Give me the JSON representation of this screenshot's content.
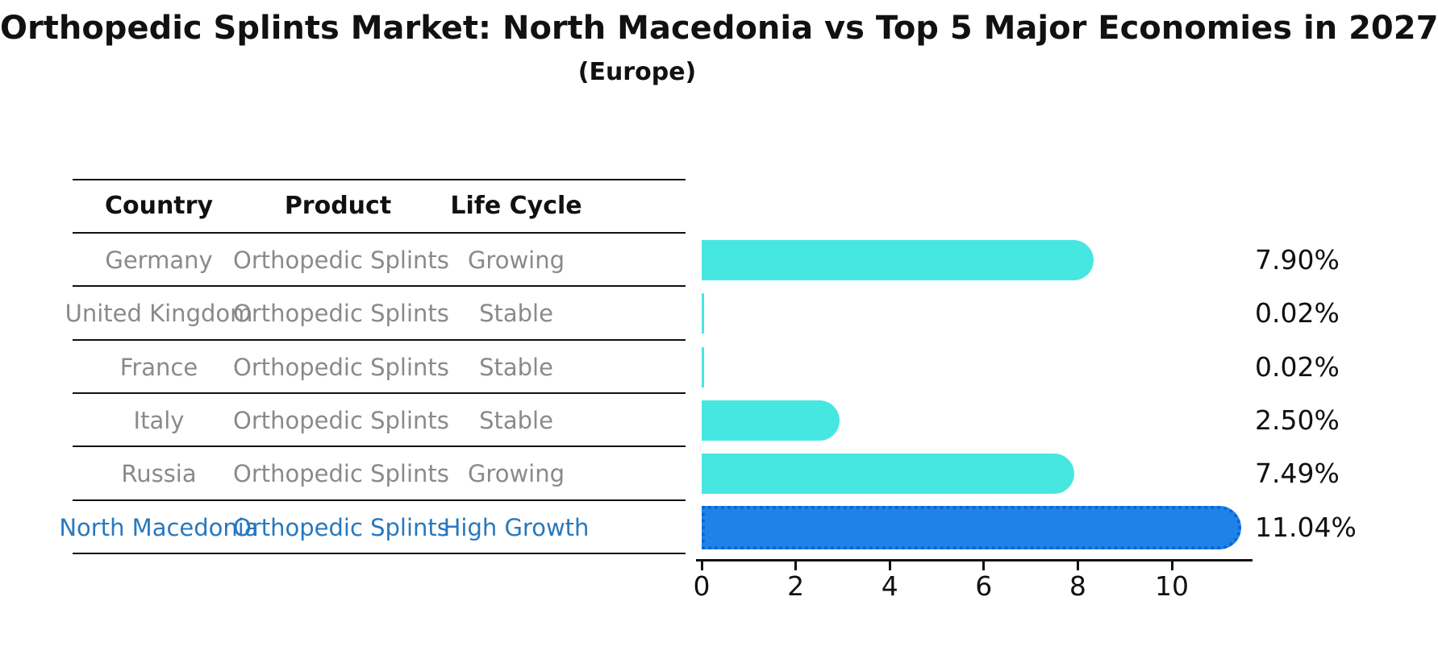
{
  "title": "Orthopedic Splints Market: North Macedonia vs Top 5 Major Economies in 2027",
  "subtitle": "(Europe)",
  "table": {
    "headers": {
      "country": "Country",
      "product": "Product",
      "life_cycle": "Life Cycle"
    },
    "rows": [
      {
        "country": "Germany",
        "product": "Orthopedic Splints",
        "life_cycle": "Growing",
        "value": 7.9,
        "value_label": "7.90%",
        "highlight": false
      },
      {
        "country": "United Kingdom",
        "product": "Orthopedic Splints",
        "life_cycle": "Stable",
        "value": 0.02,
        "value_label": "0.02%",
        "highlight": false
      },
      {
        "country": "France",
        "product": "Orthopedic Splints",
        "life_cycle": "Stable",
        "value": 0.02,
        "value_label": "0.02%",
        "highlight": false
      },
      {
        "country": "Italy",
        "product": "Orthopedic Splints",
        "life_cycle": "Stable",
        "value": 2.5,
        "value_label": "2.50%",
        "highlight": false
      },
      {
        "country": "Russia",
        "product": "Orthopedic Splints",
        "life_cycle": "Growing",
        "value": 7.49,
        "value_label": "7.49%",
        "highlight": false
      },
      {
        "country": "North Macedonia",
        "product": "Orthopedic Splints",
        "life_cycle": "High Growth",
        "value": 11.04,
        "value_label": "11.04%",
        "highlight": true
      }
    ]
  },
  "axis": {
    "ticks": [
      0,
      2,
      4,
      6,
      8,
      10
    ],
    "xmax": 11.8
  },
  "colors": {
    "bar_default": "#47e7e1",
    "bar_highlight": "#1f82e8",
    "bar_highlight_edge": "#0e63cf",
    "row_text": "#8a8a8a",
    "highlight_text": "#2878be",
    "text": "#111111"
  },
  "chart_data": {
    "type": "bar",
    "orientation": "horizontal",
    "title": "Orthopedic Splints Market: North Macedonia vs Top 5 Major Economies in 2027",
    "subtitle": "(Europe)",
    "categories": [
      "Germany",
      "United Kingdom",
      "France",
      "Italy",
      "Russia",
      "North Macedonia"
    ],
    "values": [
      7.9,
      0.02,
      0.02,
      2.5,
      7.49,
      11.04
    ],
    "data_labels": [
      "7.90%",
      "0.02%",
      "0.02%",
      "2.50%",
      "7.49%",
      "11.04%"
    ],
    "life_cycle": [
      "Growing",
      "Stable",
      "Stable",
      "Stable",
      "Growing",
      "High Growth"
    ],
    "xticks": [
      0,
      2,
      4,
      6,
      8,
      10
    ],
    "xlim": [
      0,
      11.8
    ],
    "grid": false,
    "legend": false,
    "highlight_index": 5,
    "bar_color": "#47e7e1",
    "highlight_color": "#1f82e8"
  }
}
